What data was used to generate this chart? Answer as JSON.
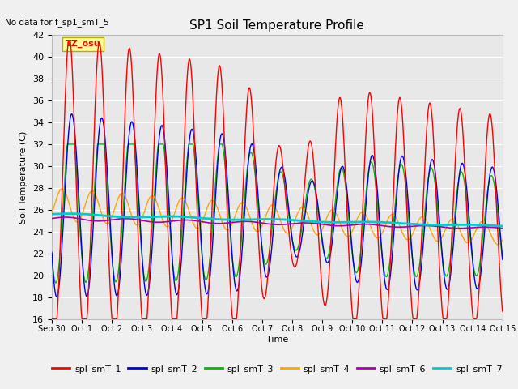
{
  "title": "SP1 Soil Temperature Profile",
  "xlabel": "Time",
  "ylabel": "Soil Temperature (C)",
  "note": "No data for f_sp1_smT_5",
  "tz_label": "TZ_osu",
  "ylim": [
    16,
    42
  ],
  "yticks": [
    16,
    18,
    20,
    22,
    24,
    26,
    28,
    30,
    32,
    34,
    36,
    38,
    40,
    42
  ],
  "xtick_labels": [
    "Sep 30",
    "Oct 1",
    "Oct 2",
    "Oct 3",
    "Oct 4",
    "Oct 5",
    "Oct 6",
    "Oct 7",
    "Oct 8",
    "Oct 9",
    "Oct 10",
    "Oct 11",
    "Oct 12",
    "Oct 13",
    "Oct 14",
    "Oct 15"
  ],
  "series_colors": {
    "spl_smT_1": "#FF0000",
    "spl_smT_2": "#0000EE",
    "spl_smT_3": "#00BB00",
    "spl_smT_4": "#FFA500",
    "spl_smT_6": "#AA00AA",
    "spl_smT_7": "#00CCCC"
  },
  "legend_labels": [
    "spl_smT_1",
    "spl_smT_2",
    "spl_smT_3",
    "spl_smT_4",
    "spl_smT_6",
    "spl_smT_7"
  ],
  "fig_bg_color": "#F0F0F0",
  "plot_bg_color": "#E8E8E8"
}
